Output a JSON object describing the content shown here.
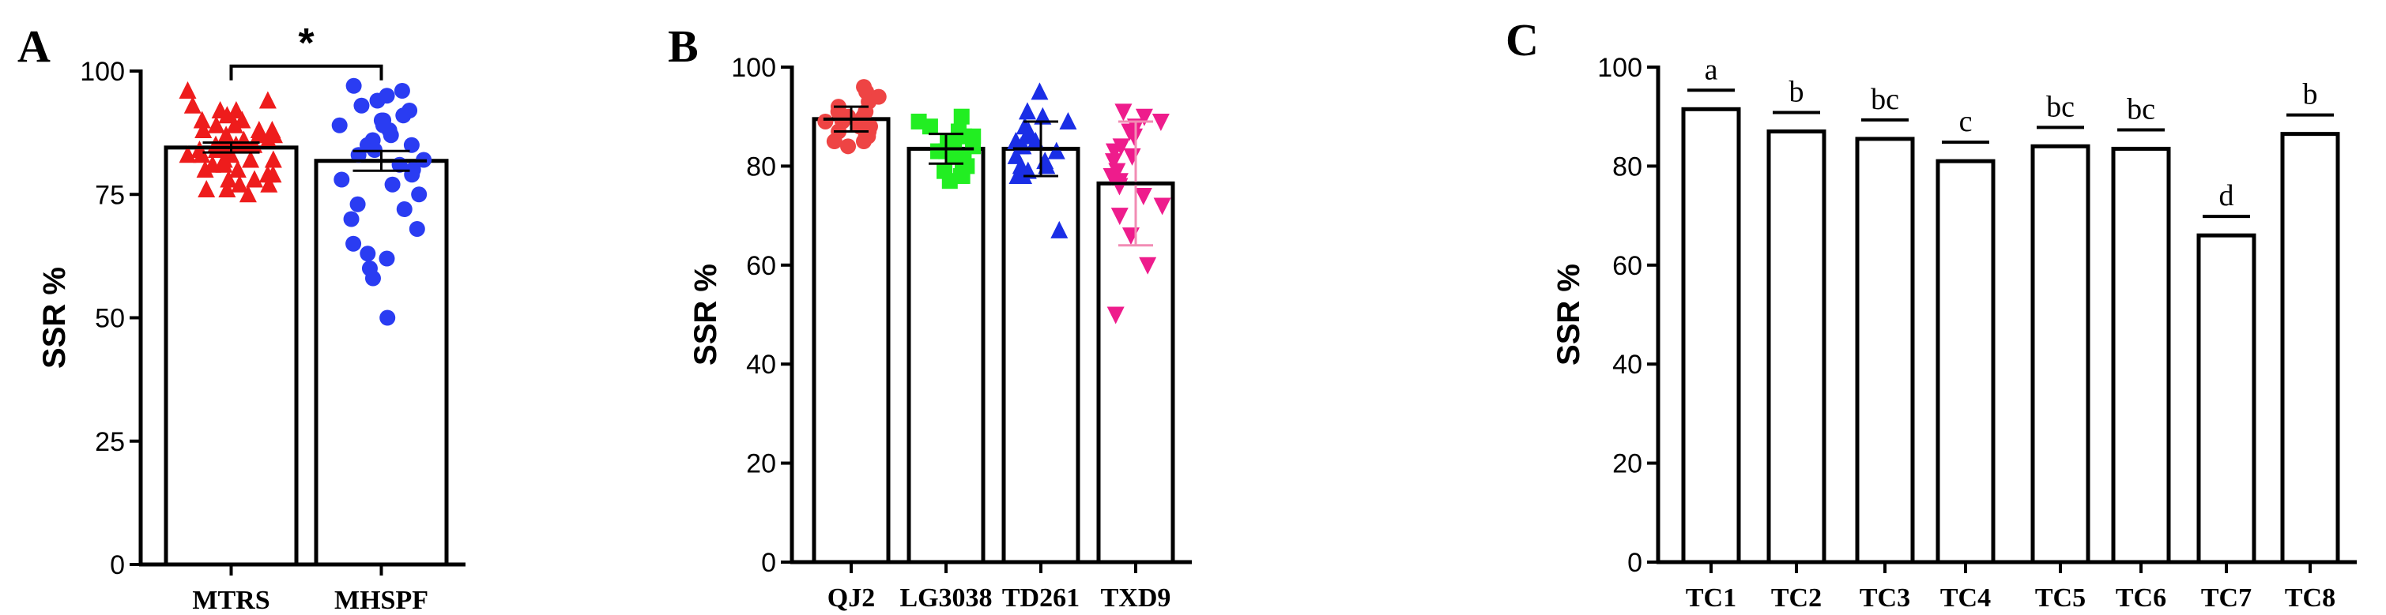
{
  "figure_colors": {
    "red": "#ee1c1c",
    "blue": "#2a3cf2",
    "salmon": "#ee4444",
    "green": "#22ee22",
    "blue2": "#1a2ee6",
    "magenta": "#ee1c8c",
    "pink_err": "#f28cb4",
    "black": "#000000"
  },
  "chart_data": [
    {
      "panel": "A",
      "type": "bar",
      "ylabel": "SSR %",
      "ylim": [
        0,
        100
      ],
      "yticks": [
        0,
        25,
        50,
        75,
        100
      ],
      "categories": [
        "MTRS",
        "MHSPF"
      ],
      "values": [
        84.5,
        81.8
      ],
      "errors": [
        1.0,
        2.0
      ],
      "point_colors": [
        "red",
        "blue"
      ],
      "markers": [
        "triangle",
        "circle"
      ],
      "points": [
        [
          96,
          94,
          93,
          92,
          92,
          91,
          90,
          90,
          89,
          89,
          88,
          88,
          88,
          87,
          87,
          87,
          86,
          86,
          86,
          85,
          85,
          85,
          85,
          84,
          84,
          84,
          83,
          83,
          83,
          82,
          82,
          82,
          81,
          81,
          80,
          80,
          79,
          79,
          78,
          78,
          77,
          77,
          76,
          76,
          75
        ],
        [
          97,
          96,
          95,
          94,
          93,
          92,
          91,
          90,
          90,
          89,
          89,
          88,
          87,
          86,
          85,
          85,
          84,
          83,
          82,
          81,
          80,
          79,
          78,
          77,
          75,
          73,
          72,
          70,
          68,
          65,
          63,
          62,
          60,
          58,
          50
        ]
      ],
      "significance": {
        "label": "*",
        "between": [
          0,
          1
        ],
        "y": 101
      }
    },
    {
      "panel": "B",
      "type": "bar",
      "ylabel": "SSR %",
      "ylim": [
        0,
        100
      ],
      "yticks": [
        0,
        20,
        40,
        60,
        80,
        100
      ],
      "categories": [
        "QJ2",
        "LG3038",
        "TD261",
        "TXD9"
      ],
      "values": [
        89.5,
        83.5,
        83.5,
        76.5
      ],
      "errors": [
        2.5,
        3.0,
        5.5,
        12.5
      ],
      "point_colors": [
        "salmon",
        "green",
        "blue2",
        "magenta"
      ],
      "markers": [
        "circle",
        "square",
        "triangle",
        "triangle-down"
      ],
      "points": [
        [
          96,
          95,
          94,
          93,
          92,
          91,
          91,
          90,
          90,
          89,
          89,
          88,
          88,
          87,
          87,
          86,
          86,
          85,
          85,
          84
        ],
        [
          90,
          89,
          88,
          87,
          86,
          86,
          85,
          85,
          84,
          84,
          83,
          83,
          82,
          82,
          81,
          80,
          79,
          78,
          78,
          77
        ],
        [
          95,
          91,
          90,
          89,
          88,
          87,
          86,
          85,
          85,
          84,
          84,
          83,
          82,
          81,
          80,
          80,
          79,
          78,
          78,
          67
        ],
        [
          91,
          90,
          89,
          88,
          87,
          86,
          84,
          83,
          82,
          81,
          79,
          78,
          77,
          76,
          74,
          72,
          70,
          66,
          60,
          50
        ]
      ]
    },
    {
      "panel": "C",
      "type": "bar",
      "ylabel": "SSR %",
      "ylim": [
        0,
        100
      ],
      "yticks": [
        0,
        20,
        40,
        60,
        80,
        100
      ],
      "categories": [
        "TC1",
        "TC2",
        "TC3",
        "TC4",
        "TC5",
        "TC6",
        "TC7",
        "TC8"
      ],
      "values": [
        91.5,
        87,
        85.5,
        81,
        84,
        83.5,
        66,
        86.5
      ],
      "sig_letters": [
        "a",
        "b",
        "bc",
        "c",
        "bc",
        "bc",
        "d",
        "b"
      ],
      "patterns": [
        "hlines",
        "dots",
        "vlines",
        "diag-thin",
        "grid",
        "diag-thick",
        "brick",
        "diag-thick"
      ]
    }
  ]
}
